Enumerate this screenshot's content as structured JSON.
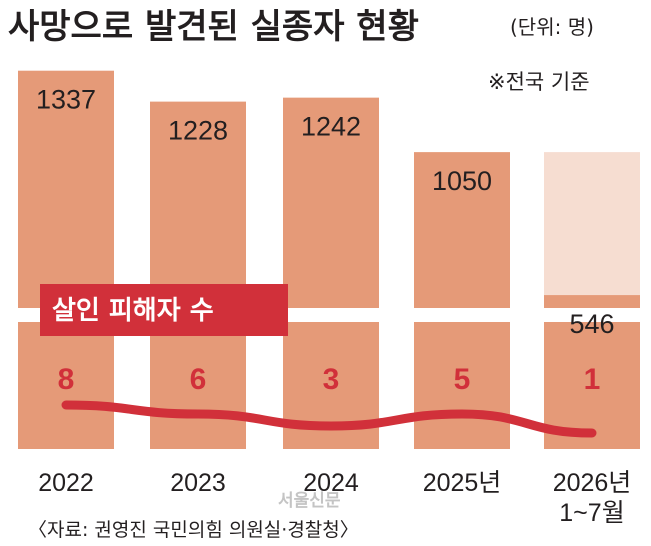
{
  "chart_data": {
    "type": "bar",
    "title": "사망으로 발견된 실종자 현황",
    "unit": "(단위: 명)",
    "basis": "※전국 기준",
    "categories": [
      "2022",
      "2023",
      "2024",
      "2025년",
      "2026년 1~7월"
    ],
    "series": [
      {
        "values": [
          1337,
          1228,
          1242,
          1050,
          546
        ]
      },
      {
        "name": "살인 피해자 수",
        "type": "line",
        "values": [
          8,
          6,
          3,
          5,
          1
        ]
      }
    ],
    "source": "〈자료: 권영진 국민의힘 의원실·경찰청〉",
    "colors": {
      "bar": "#e59a78",
      "bar_partial_background": "#f6ddd1",
      "line": "#d1303a",
      "legend_bg": "#d1303a"
    }
  },
  "watermark": "서울신문"
}
